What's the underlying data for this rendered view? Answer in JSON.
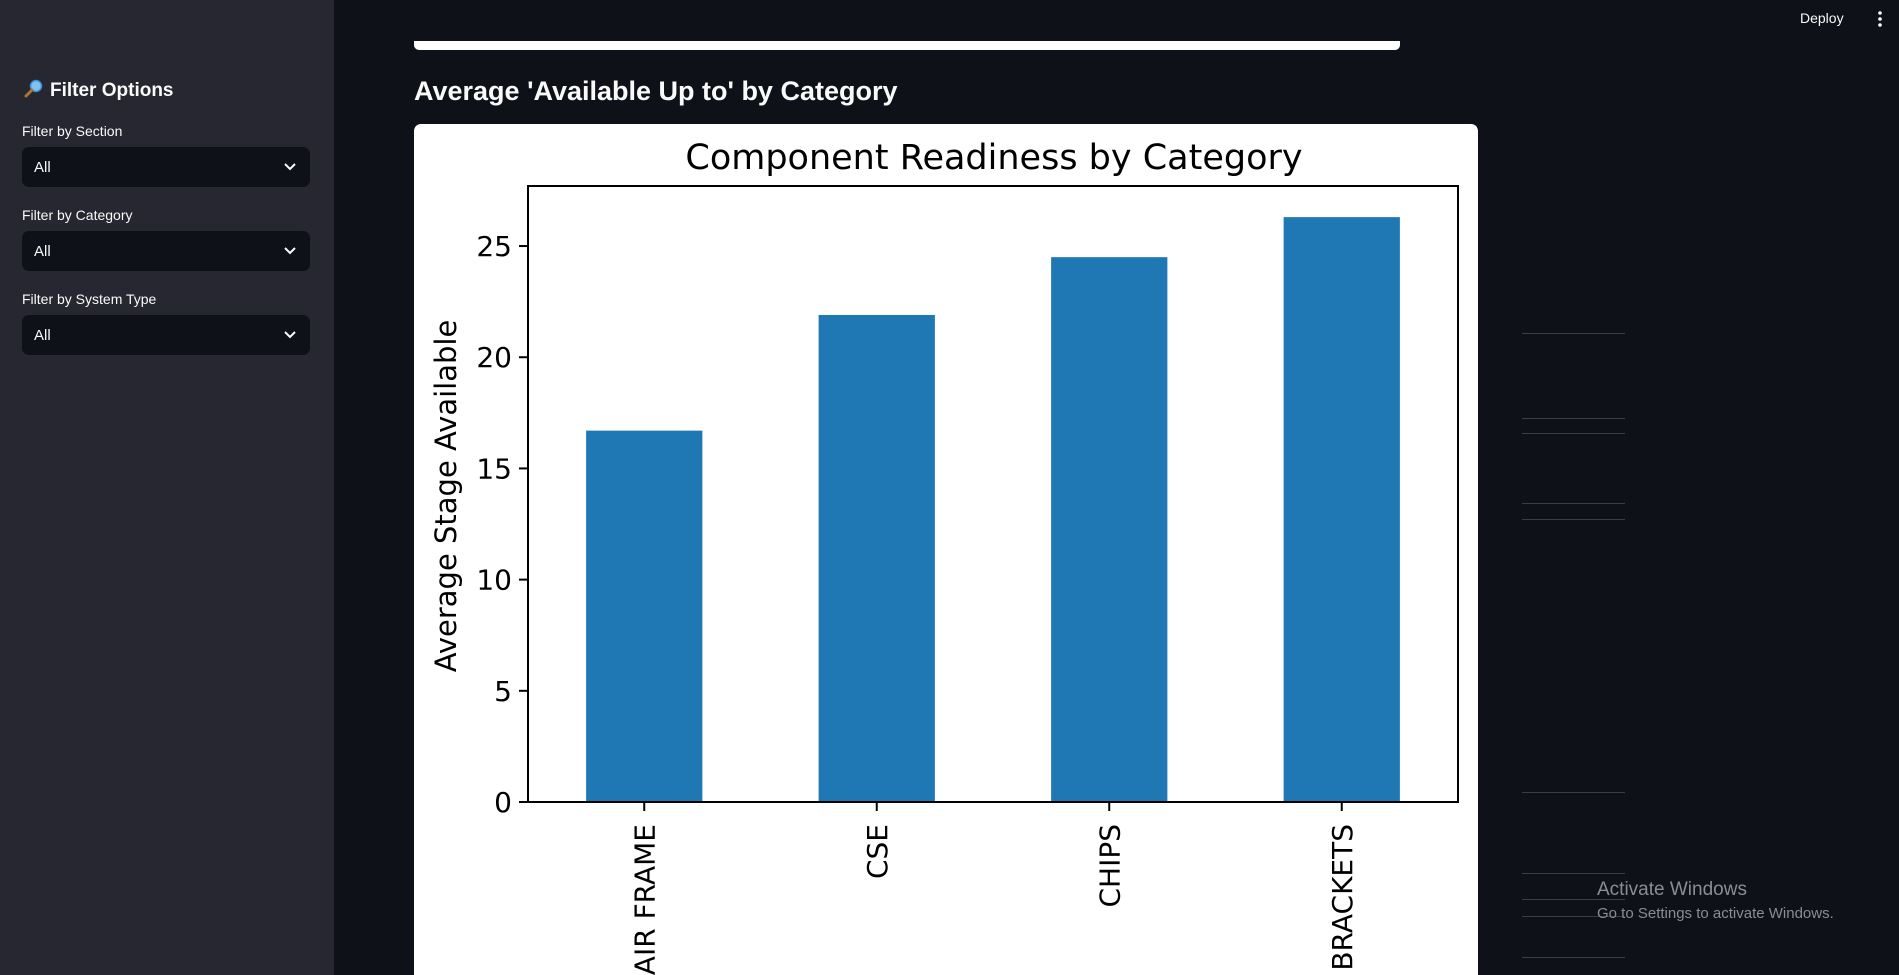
{
  "sidebar": {
    "title": "Filter Options",
    "title_icon": "magnifier-icon",
    "filters": [
      {
        "label": "Filter by Section",
        "value": "All"
      },
      {
        "label": "Filter by Category",
        "value": "All"
      },
      {
        "label": "Filter by System Type",
        "value": "All"
      }
    ]
  },
  "header": {
    "deploy_label": "Deploy",
    "menu_icon": "kebab-menu-icon"
  },
  "main": {
    "heading": "Average 'Available Up to' by Category"
  },
  "chart_data": {
    "type": "bar",
    "title": "Component Readiness by Category",
    "xlabel": "",
    "ylabel": "Average Stage Available",
    "categories": [
      "AIR FRAME",
      "CSE",
      "CHIPS",
      "BRACKETS"
    ],
    "values": [
      16.7,
      21.9,
      24.5,
      26.3
    ],
    "ylim": [
      0,
      27.7
    ],
    "yticks": [
      0,
      5,
      10,
      15,
      20,
      25
    ],
    "bar_color": "#1f77b4",
    "grid": false,
    "legend": "none"
  },
  "watermark": {
    "title": "Activate Windows",
    "subtitle": "Go to Settings to activate Windows."
  }
}
